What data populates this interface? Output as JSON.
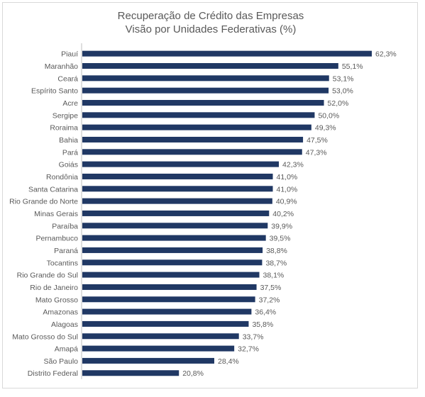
{
  "chart_data": {
    "type": "bar",
    "orientation": "horizontal",
    "title": "Recuperação de Crédito das Empresas",
    "subtitle": "Visão por Unidades Federativas (%)",
    "categories": [
      "Piauí",
      "Maranhão",
      "Ceará",
      "Espírito Santo",
      "Acre",
      "Sergipe",
      "Roraima",
      "Bahia",
      "Pará",
      "Goiás",
      "Rondônia",
      "Santa Catarina",
      "Rio Grande do Norte",
      "Minas Gerais",
      "Paraíba",
      "Pernambuco",
      "Paraná",
      "Tocantins",
      "Rio Grande do Sul",
      "Rio de Janeiro",
      "Mato Grosso",
      "Amazonas",
      "Alagoas",
      "Mato Grosso do Sul",
      "Amapá",
      "São Paulo",
      "Distrito Federal"
    ],
    "values": [
      62.3,
      55.1,
      53.1,
      53.0,
      52.0,
      50.0,
      49.3,
      47.5,
      47.3,
      42.3,
      41.0,
      41.0,
      40.9,
      40.2,
      39.9,
      39.5,
      38.8,
      38.7,
      38.1,
      37.5,
      37.2,
      36.4,
      35.8,
      33.7,
      32.7,
      28.4,
      20.8
    ],
    "labels": [
      "62,3%",
      "55,1%",
      "53,1%",
      "53,0%",
      "52,0%",
      "50,0%",
      "49,3%",
      "47,5%",
      "47,3%",
      "42,3%",
      "41,0%",
      "41,0%",
      "40,9%",
      "40,2%",
      "39,9%",
      "39,5%",
      "38,8%",
      "38,7%",
      "38,1%",
      "37,5%",
      "37,2%",
      "36,4%",
      "35,8%",
      "33,7%",
      "32,7%",
      "28,4%",
      "20,8%"
    ],
    "xlim": [
      0,
      62.3
    ],
    "grid": false,
    "legend": "none",
    "bar_color": "#203864",
    "axis_color": "#bfbfbf"
  }
}
